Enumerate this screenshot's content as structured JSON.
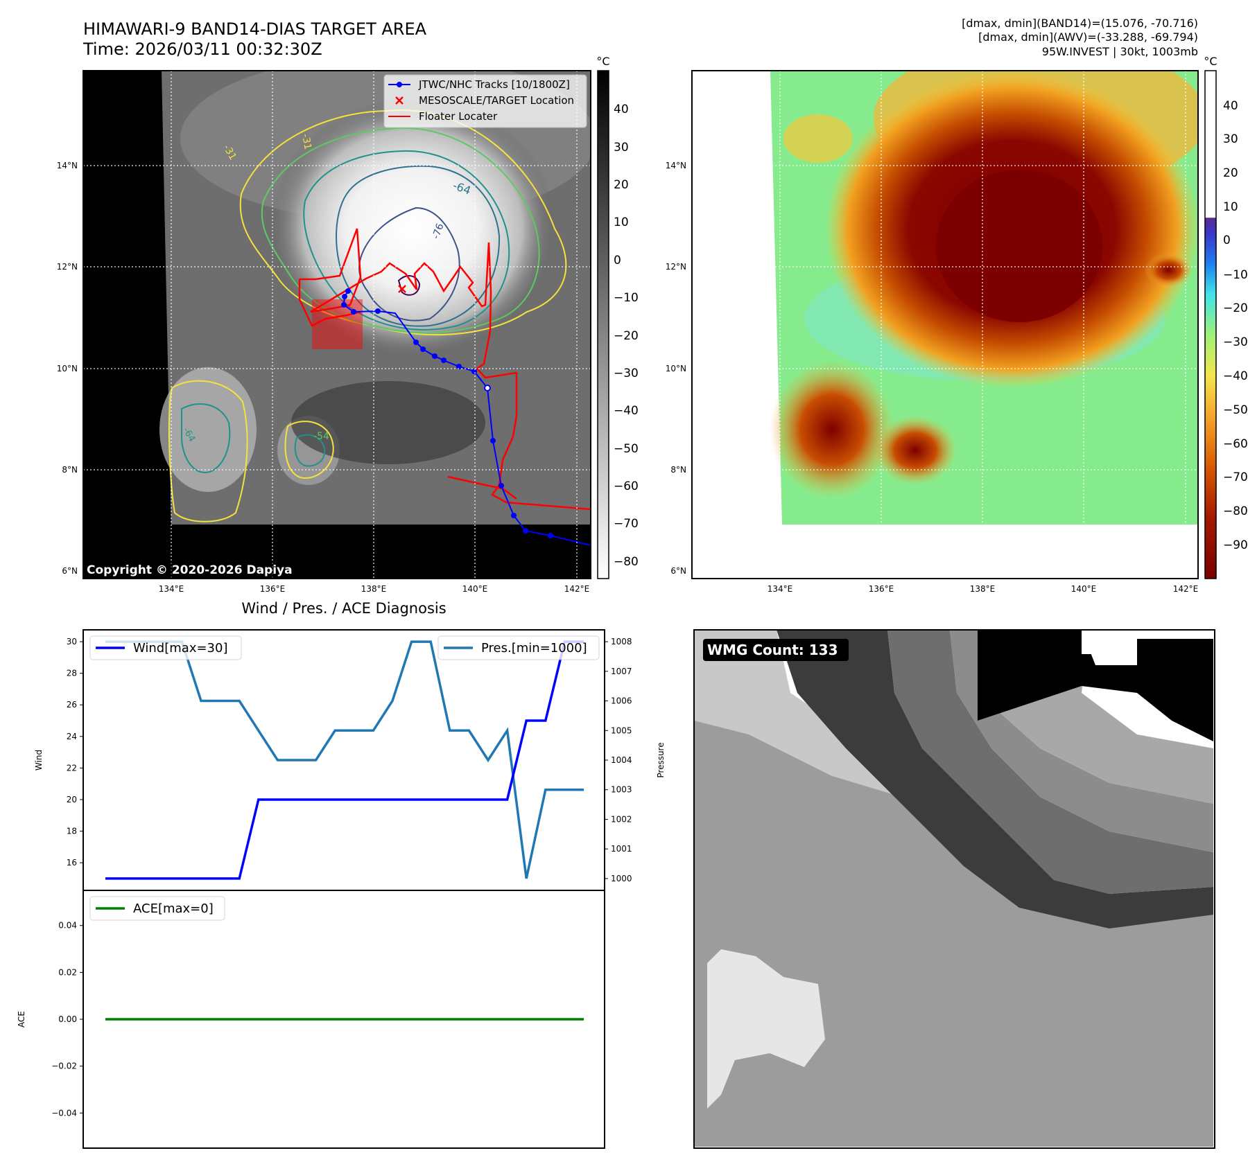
{
  "header": {
    "title_line1": "HIMAWARI-9 BAND14-DIAS TARGET AREA",
    "title_line2": "Time: 2026/03/11 00:32:30Z",
    "info_line1": "[dmax, dmin](BAND14)=(15.076, -70.716)",
    "info_line2": "[dmax, dmin](AWV)=(-33.288, -69.794)",
    "info_line3": "95W.INVEST | 30kt, 1003mb"
  },
  "map": {
    "lat_labels": [
      "14°N",
      "12°N",
      "10°N",
      "8°N",
      "6°N"
    ],
    "lon_labels": [
      "134°E",
      "136°E",
      "138°E",
      "140°E",
      "142°E"
    ],
    "contour_labels": [
      "-31",
      "-31",
      "-64",
      "-76",
      "-54",
      "-64"
    ],
    "copyright": "Copyright © 2020-2026 Dapiya",
    "legend": {
      "tracks": "JTWC/NHC Tracks [10/1800Z]",
      "target": "MESOSCALE/TARGET Location",
      "floater": "Floater Locater"
    },
    "track_color": "#0000ff",
    "floater_color": "#ff0000"
  },
  "colorbar_gray": {
    "unit": "°C",
    "ticks": [
      "40",
      "30",
      "20",
      "10",
      "0",
      "−10",
      "−20",
      "−30",
      "−40",
      "−50",
      "−60",
      "−70",
      "−80"
    ]
  },
  "colorbar_awv": {
    "unit": "°C",
    "ticks": [
      "40",
      "30",
      "20",
      "10",
      "0",
      "−10",
      "−20",
      "−30",
      "−40",
      "−50",
      "−60",
      "−70",
      "−80",
      "−90"
    ]
  },
  "diag": {
    "title": "Wind / Pres. / ACE Diagnosis",
    "wind_legend": "Wind[max=30]",
    "pres_legend": "Pres.[min=1000]",
    "ace_legend": "ACE[max=0]",
    "wind_color": "#0000ff",
    "pres_color": "#1f77b4",
    "ace_color": "#008000"
  },
  "wmg": {
    "label": "WMG Count: 133"
  },
  "chart_data": [
    {
      "type": "line",
      "title": "Wind / Pres. / ACE Diagnosis",
      "xlabel": "",
      "ylabel": "Wind",
      "ylabel_right": "Pressure",
      "ylim": [
        14.25,
        30.75
      ],
      "y2lim": [
        999.6,
        1008.4
      ],
      "y_ticks": [
        16,
        18,
        20,
        22,
        24,
        26,
        28,
        30
      ],
      "y2_ticks": [
        1000,
        1001,
        1002,
        1003,
        1004,
        1005,
        1006,
        1007,
        1008
      ],
      "x": [
        0,
        1,
        2,
        3,
        4,
        5,
        6,
        7,
        8,
        9,
        10,
        11,
        12,
        13,
        14,
        15,
        16,
        17,
        18,
        19,
        20,
        21,
        22,
        23,
        24,
        25
      ],
      "series": [
        {
          "name": "Wind[max=30]",
          "axis": "left",
          "values": [
            15,
            15,
            15,
            15,
            15,
            15,
            15,
            15,
            20,
            20,
            20,
            20,
            20,
            20,
            20,
            20,
            20,
            20,
            20,
            20,
            20,
            20,
            25,
            25,
            30,
            30
          ]
        },
        {
          "name": "Pres.[min=1000]",
          "axis": "right",
          "values": [
            1008,
            1008,
            1008,
            1008,
            1008,
            1006,
            1006,
            1006,
            1005,
            1004,
            1004,
            1004,
            1005,
            1005,
            1005,
            1006,
            1008,
            1008,
            1005,
            1005,
            1004,
            1005,
            1000,
            1003,
            1003,
            1003
          ]
        }
      ]
    },
    {
      "type": "line",
      "title": "",
      "xlabel": "",
      "ylabel": "ACE",
      "ylim": [
        -0.055,
        0.055
      ],
      "y_ticks": [
        0.04,
        0.02,
        0.0,
        -0.02,
        -0.04
      ],
      "y_tick_labels": [
        "0.04",
        "0.02",
        "0.00",
        "−0.02",
        "−0.04"
      ],
      "x": [
        0,
        25
      ],
      "series": [
        {
          "name": "ACE[max=0]",
          "values": [
            0,
            0
          ]
        }
      ]
    }
  ]
}
